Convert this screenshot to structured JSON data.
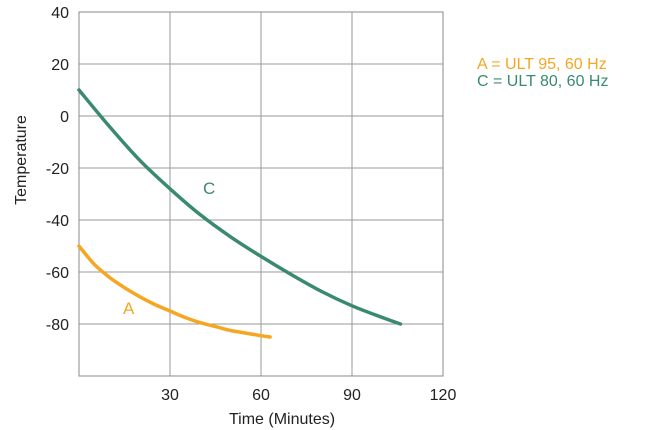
{
  "chart_data": {
    "type": "line",
    "xlabel": "Time (Minutes)",
    "ylabel": "Temperature",
    "xlim": [
      0,
      120
    ],
    "ylim": [
      -100,
      40
    ],
    "x_ticks": [
      "30",
      "60",
      "90",
      "120"
    ],
    "x_tick_values": [
      30,
      60,
      90,
      120
    ],
    "y_ticks": [
      "40",
      "20",
      "0",
      "-20",
      "-40",
      "-60",
      "-80"
    ],
    "y_tick_values": [
      40,
      20,
      0,
      -20,
      -40,
      -60,
      -80
    ],
    "grid": true,
    "legend_position": "top-right",
    "series": [
      {
        "name": "A",
        "legend": "A = ULT 95, 60 Hz",
        "color": "#f5a623",
        "x": [
          0,
          5,
          10,
          15,
          20,
          25,
          30,
          35,
          40,
          45,
          50,
          55,
          60,
          63
        ],
        "y": [
          -50,
          -57,
          -62,
          -66,
          -69.5,
          -72.5,
          -75,
          -77.5,
          -79.5,
          -81,
          -82.5,
          -83.5,
          -84.5,
          -85
        ]
      },
      {
        "name": "C",
        "legend": "C = ULT 80, 60 Hz",
        "color": "#3a8a70",
        "x": [
          0,
          10,
          20,
          30,
          40,
          50,
          60,
          70,
          80,
          90,
          100,
          106
        ],
        "y": [
          10,
          -4,
          -17,
          -28,
          -38,
          -46.5,
          -54,
          -61,
          -67.5,
          -73,
          -77.5,
          -80
        ]
      }
    ]
  }
}
